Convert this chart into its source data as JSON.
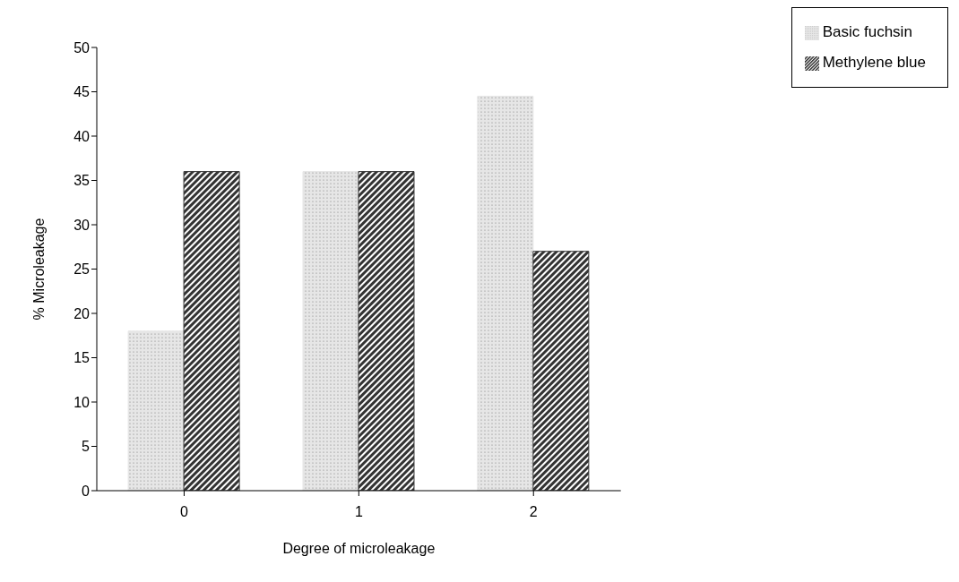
{
  "chart_data": {
    "type": "bar",
    "xlabel": "Degree of microleakage",
    "ylabel": "% Microleakage",
    "categories": [
      "0",
      "1",
      "2"
    ],
    "series": [
      {
        "name": "Basic fuchsin",
        "color": "#e6e6e6",
        "values": [
          18,
          36,
          44.5
        ]
      },
      {
        "name": "Methylene blue",
        "color": "#333333",
        "values": [
          36,
          36,
          27
        ]
      }
    ],
    "ylim": [
      0,
      50
    ],
    "yticks": [
      0,
      5,
      10,
      15,
      20,
      25,
      30,
      35,
      40,
      45,
      50
    ],
    "grid": false,
    "legend": "top right"
  }
}
